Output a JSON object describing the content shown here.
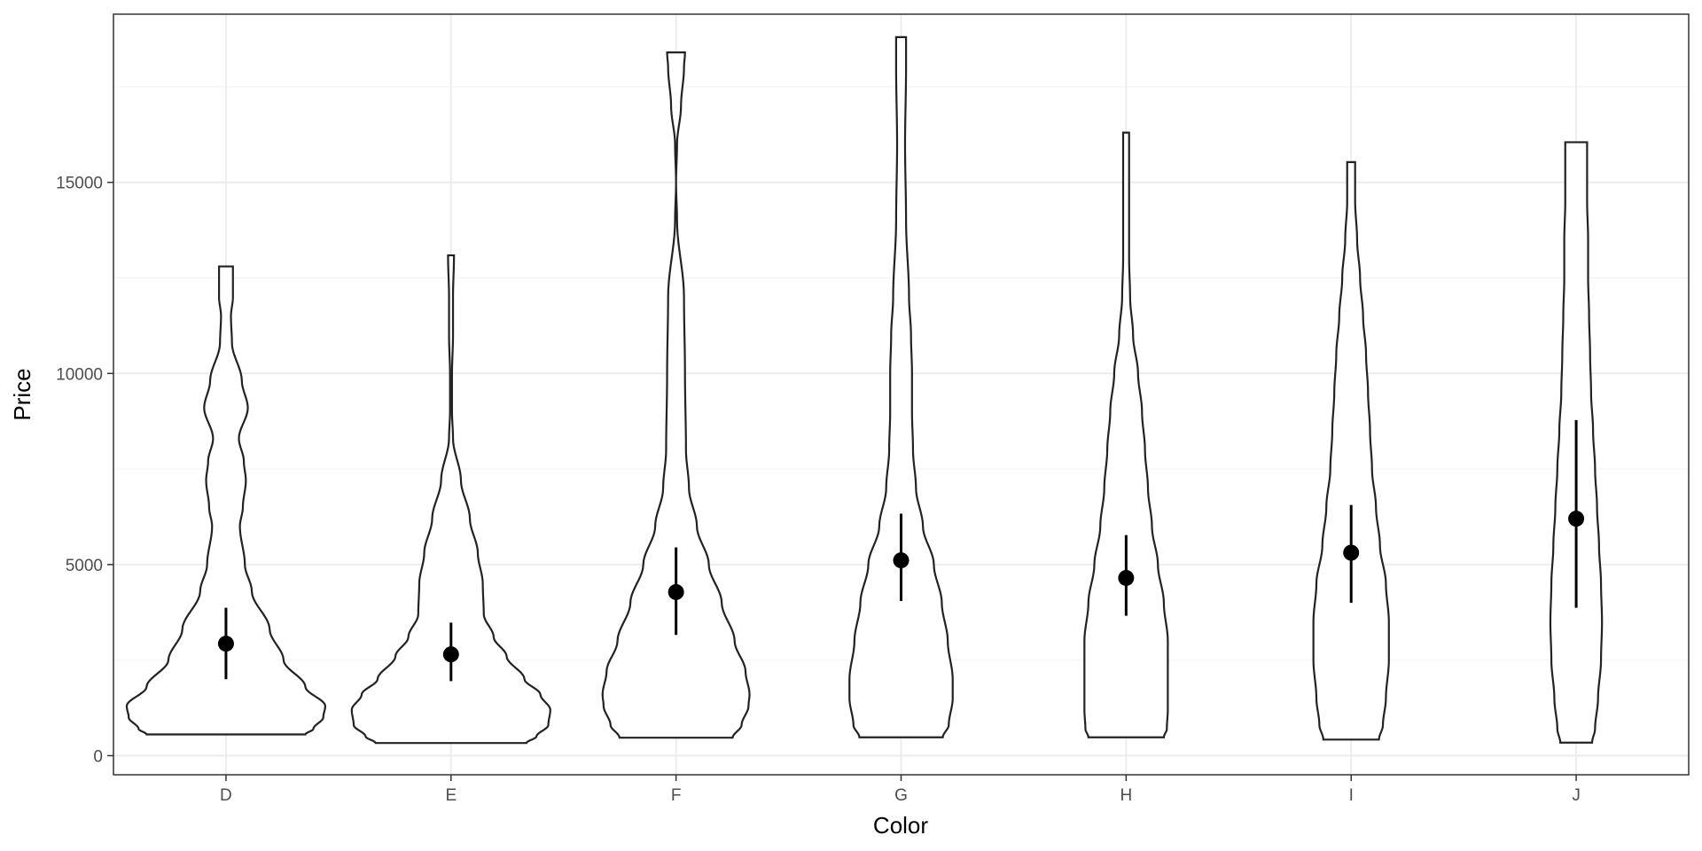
{
  "chart_data": {
    "type": "violin",
    "title": "",
    "xlabel": "Color",
    "ylabel": "Price",
    "ylim": [
      -500,
      19400
    ],
    "yticks": [
      0,
      5000,
      10000,
      15000
    ],
    "grid": true,
    "categories": [
      "D",
      "E",
      "F",
      "G",
      "H",
      "I",
      "J"
    ],
    "violins": [
      {
        "category": "D",
        "min": 555,
        "max": 12800,
        "mean": 2930,
        "error_low": 2000,
        "error_high": 3870,
        "profile": [
          [
            555,
            0.8
          ],
          [
            700,
            0.88
          ],
          [
            1000,
            0.98
          ],
          [
            1300,
            1.0
          ],
          [
            1800,
            0.8
          ],
          [
            2500,
            0.58
          ],
          [
            3300,
            0.44
          ],
          [
            4300,
            0.26
          ],
          [
            5000,
            0.19
          ],
          [
            6000,
            0.14
          ],
          [
            6500,
            0.17
          ],
          [
            7200,
            0.2
          ],
          [
            7700,
            0.18
          ],
          [
            8300,
            0.13
          ],
          [
            9100,
            0.22
          ],
          [
            9800,
            0.16
          ],
          [
            10800,
            0.06
          ],
          [
            11500,
            0.05
          ],
          [
            12000,
            0.07
          ],
          [
            12500,
            0.07
          ],
          [
            12800,
            0.07
          ]
        ]
      },
      {
        "category": "E",
        "min": 330,
        "max": 13090,
        "mean": 2650,
        "error_low": 1950,
        "error_high": 3480,
        "profile": [
          [
            330,
            0.76
          ],
          [
            500,
            0.86
          ],
          [
            800,
            0.98
          ],
          [
            1200,
            1.0
          ],
          [
            1600,
            0.9
          ],
          [
            2000,
            0.74
          ],
          [
            2600,
            0.56
          ],
          [
            3100,
            0.43
          ],
          [
            3700,
            0.33
          ],
          [
            4500,
            0.32
          ],
          [
            5300,
            0.27
          ],
          [
            6200,
            0.19
          ],
          [
            7200,
            0.1
          ],
          [
            8300,
            0.02
          ],
          [
            9000,
            0.01
          ],
          [
            10000,
            0.01
          ],
          [
            11000,
            0.02
          ],
          [
            12000,
            0.02
          ],
          [
            13090,
            0.03
          ]
        ]
      },
      {
        "category": "F",
        "min": 470,
        "max": 18400,
        "mean": 4280,
        "error_low": 3160,
        "error_high": 5450,
        "profile": [
          [
            470,
            0.57
          ],
          [
            800,
            0.66
          ],
          [
            1300,
            0.73
          ],
          [
            1600,
            0.74
          ],
          [
            2200,
            0.7
          ],
          [
            3000,
            0.59
          ],
          [
            4000,
            0.46
          ],
          [
            5000,
            0.33
          ],
          [
            6000,
            0.21
          ],
          [
            7000,
            0.13
          ],
          [
            8000,
            0.1
          ],
          [
            10000,
            0.09
          ],
          [
            12000,
            0.08
          ],
          [
            14000,
            0.01
          ],
          [
            15000,
            0.0
          ],
          [
            16000,
            0.01
          ],
          [
            17000,
            0.05
          ],
          [
            18000,
            0.08
          ],
          [
            18400,
            0.09
          ]
        ]
      },
      {
        "category": "G",
        "min": 480,
        "max": 18800,
        "mean": 5110,
        "error_low": 4050,
        "error_high": 6330,
        "profile": [
          [
            480,
            0.42
          ],
          [
            800,
            0.48
          ],
          [
            1500,
            0.52
          ],
          [
            2000,
            0.52
          ],
          [
            3000,
            0.47
          ],
          [
            4000,
            0.41
          ],
          [
            5000,
            0.33
          ],
          [
            6000,
            0.22
          ],
          [
            7000,
            0.15
          ],
          [
            8000,
            0.12
          ],
          [
            9000,
            0.11
          ],
          [
            10000,
            0.11
          ],
          [
            11000,
            0.1
          ],
          [
            12000,
            0.08
          ],
          [
            14000,
            0.05
          ],
          [
            16000,
            0.04
          ],
          [
            18000,
            0.05
          ],
          [
            18800,
            0.05
          ]
        ]
      },
      {
        "category": "H",
        "min": 480,
        "max": 16300,
        "mean": 4650,
        "error_low": 3660,
        "error_high": 5770,
        "profile": [
          [
            480,
            0.38
          ],
          [
            700,
            0.41
          ],
          [
            1200,
            0.42
          ],
          [
            2000,
            0.42
          ],
          [
            3000,
            0.42
          ],
          [
            4000,
            0.38
          ],
          [
            5000,
            0.32
          ],
          [
            6000,
            0.26
          ],
          [
            7000,
            0.22
          ],
          [
            8000,
            0.19
          ],
          [
            9000,
            0.16
          ],
          [
            10000,
            0.12
          ],
          [
            11000,
            0.07
          ],
          [
            12000,
            0.04
          ],
          [
            13000,
            0.03
          ],
          [
            14000,
            0.03
          ],
          [
            16300,
            0.03
          ]
        ]
      },
      {
        "category": "I",
        "min": 420,
        "max": 15530,
        "mean": 5310,
        "error_low": 4000,
        "error_high": 6560,
        "profile": [
          [
            420,
            0.28
          ],
          [
            800,
            0.32
          ],
          [
            1500,
            0.35
          ],
          [
            2500,
            0.38
          ],
          [
            3500,
            0.38
          ],
          [
            4500,
            0.35
          ],
          [
            5500,
            0.29
          ],
          [
            6500,
            0.25
          ],
          [
            7500,
            0.21
          ],
          [
            8500,
            0.19
          ],
          [
            9500,
            0.17
          ],
          [
            10500,
            0.15
          ],
          [
            11500,
            0.12
          ],
          [
            12500,
            0.09
          ],
          [
            13500,
            0.06
          ],
          [
            14500,
            0.04
          ],
          [
            15530,
            0.04
          ]
        ]
      },
      {
        "category": "J",
        "min": 340,
        "max": 16050,
        "mean": 6200,
        "error_low": 3870,
        "error_high": 8780,
        "profile": [
          [
            340,
            0.16
          ],
          [
            700,
            0.19
          ],
          [
            1500,
            0.22
          ],
          [
            2500,
            0.25
          ],
          [
            3500,
            0.26
          ],
          [
            4500,
            0.25
          ],
          [
            5500,
            0.23
          ],
          [
            6500,
            0.21
          ],
          [
            7500,
            0.19
          ],
          [
            8500,
            0.17
          ],
          [
            9500,
            0.15
          ],
          [
            10500,
            0.14
          ],
          [
            11500,
            0.13
          ],
          [
            12500,
            0.12
          ],
          [
            13500,
            0.12
          ],
          [
            14500,
            0.11
          ],
          [
            15500,
            0.11
          ],
          [
            16050,
            0.11
          ]
        ]
      }
    ]
  }
}
